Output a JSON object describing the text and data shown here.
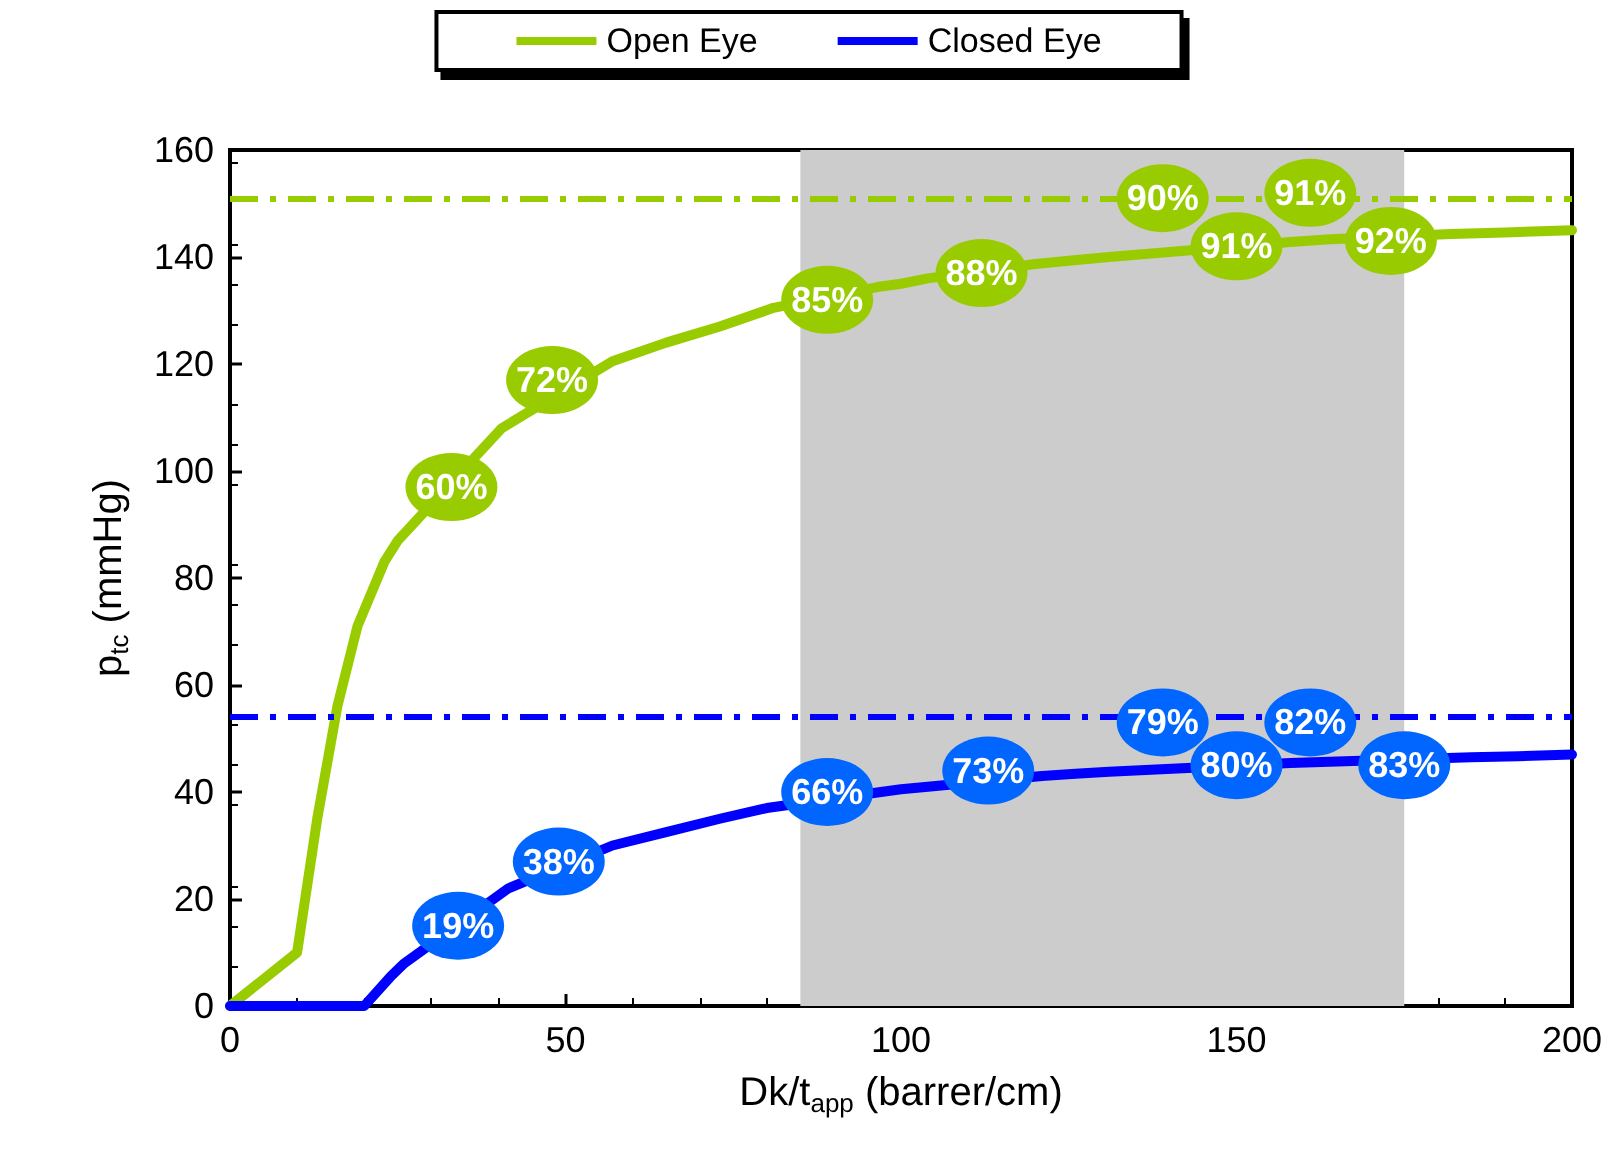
{
  "chart_data": {
    "type": "line",
    "xlabel": "Dk/t$_{app}$ (barrer/cm)",
    "ylabel": "p$_{tc}$ (mmHg)",
    "xlim": [
      0,
      200
    ],
    "xticks": [
      0,
      50,
      100,
      150,
      200
    ],
    "ylim": [
      0,
      160
    ],
    "yticks": [
      0,
      20,
      40,
      60,
      80,
      100,
      120,
      140,
      160
    ],
    "grid": false,
    "legend": "top",
    "marker": "none",
    "line_style": "solid",
    "series": [
      {
        "name": "Open Eye",
        "color": "#99cc00",
        "x": [
          0,
          10,
          13,
          16,
          19,
          23,
          25,
          40.5,
          57,
          65,
          73,
          81,
          97,
          100,
          104,
          120,
          125,
          131,
          158,
          164,
          182,
          190,
          200
        ],
        "values": [
          0,
          10,
          35,
          56,
          71,
          83,
          87,
          108,
          120.5,
          124,
          127,
          130.5,
          134.5,
          135,
          136,
          138.7,
          139.3,
          140,
          142.8,
          143.3,
          144.3,
          144.6,
          145
        ]
      },
      {
        "name": "Closed Eye",
        "color": "#0000ff",
        "x": [
          0,
          10,
          20,
          24,
          26,
          41.5,
          57,
          65,
          73,
          80,
          97,
          100,
          104,
          121,
          126,
          131,
          158,
          165,
          185,
          192,
          200
        ],
        "values": [
          0,
          0,
          0,
          5.6,
          8,
          22,
          30,
          32.5,
          35,
          37,
          40,
          40.5,
          41,
          43,
          43.4,
          43.8,
          45.4,
          45.7,
          46.5,
          46.7,
          47
        ]
      }
    ],
    "ref_lines": [
      {
        "axis": "y",
        "value": 151,
        "color": "#99cc00",
        "line_style": "dashed"
      },
      {
        "axis": "y",
        "value": 54,
        "color": "#0000ff",
        "line_style": "dashed"
      }
    ],
    "bands": [
      {
        "axis": "x",
        "from": 85,
        "to": 175,
        "color": "#cccccc"
      }
    ],
    "annotations": [
      {
        "text": "60%",
        "x": 33,
        "y": 97
      },
      {
        "text": "72%",
        "x": 48,
        "y": 117
      },
      {
        "text": "85%",
        "x": 89,
        "y": 132
      },
      {
        "text": "88%",
        "x": 112,
        "y": 137
      },
      {
        "text": "90%",
        "x": 139,
        "y": 151
      },
      {
        "text": "91%",
        "x": 150,
        "y": 142
      },
      {
        "text": "91%",
        "x": 161,
        "y": 152
      },
      {
        "text": "92%",
        "x": 173,
        "y": 143
      },
      {
        "text": "19%",
        "x": 34,
        "y": 15
      },
      {
        "text": "38%",
        "x": 49,
        "y": 27
      },
      {
        "text": "66%",
        "x": 89,
        "y": 40
      },
      {
        "text": "73%",
        "x": 113,
        "y": 44
      },
      {
        "text": "79%",
        "x": 139,
        "y": 53
      },
      {
        "text": "80%",
        "x": 150,
        "y": 45
      },
      {
        "text": "82%",
        "x": 161,
        "y": 53
      },
      {
        "text": "83%",
        "x": 175,
        "y": 45
      }
    ]
  }
}
